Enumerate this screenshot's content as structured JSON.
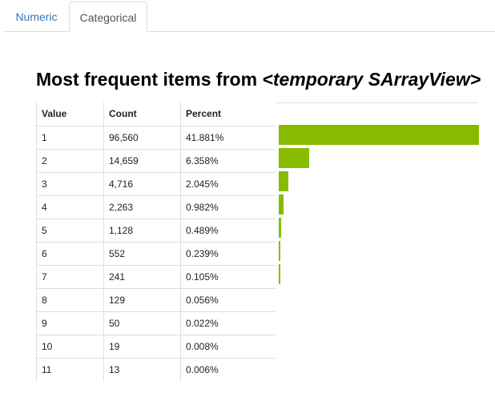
{
  "tabs": [
    {
      "label": "Numeric",
      "active": false
    },
    {
      "label": "Categorical",
      "active": true
    }
  ],
  "title_prefix": "Most frequent items from ",
  "title_source": "<temporary SArrayView>",
  "table": {
    "headers": [
      "Value",
      "Count",
      "Percent"
    ],
    "rows": [
      {
        "value": "1",
        "count": "96,560",
        "percent": "41.881%"
      },
      {
        "value": "2",
        "count": "14,659",
        "percent": "6.358%"
      },
      {
        "value": "3",
        "count": "4,716",
        "percent": "2.045%"
      },
      {
        "value": "4",
        "count": "2,263",
        "percent": "0.982%"
      },
      {
        "value": "5",
        "count": "1,128",
        "percent": "0.489%"
      },
      {
        "value": "6",
        "count": "552",
        "percent": "0.239%"
      },
      {
        "value": "7",
        "count": "241",
        "percent": "0.105%"
      },
      {
        "value": "8",
        "count": "129",
        "percent": "0.056%"
      },
      {
        "value": "9",
        "count": "50",
        "percent": "0.022%"
      },
      {
        "value": "10",
        "count": "19",
        "percent": "0.008%"
      },
      {
        "value": "11",
        "count": "13",
        "percent": "0.006%"
      }
    ]
  },
  "chart_data": {
    "type": "bar",
    "orientation": "horizontal",
    "categories": [
      "1",
      "2",
      "3",
      "4",
      "5",
      "6",
      "7",
      "8",
      "9",
      "10",
      "11"
    ],
    "values": [
      96560,
      14659,
      4716,
      2263,
      1128,
      552,
      241,
      129,
      50,
      19,
      13
    ],
    "bar_color": "#88bb00"
  },
  "colors": {
    "tab_link": "#337ab7",
    "border": "#dddddd"
  }
}
